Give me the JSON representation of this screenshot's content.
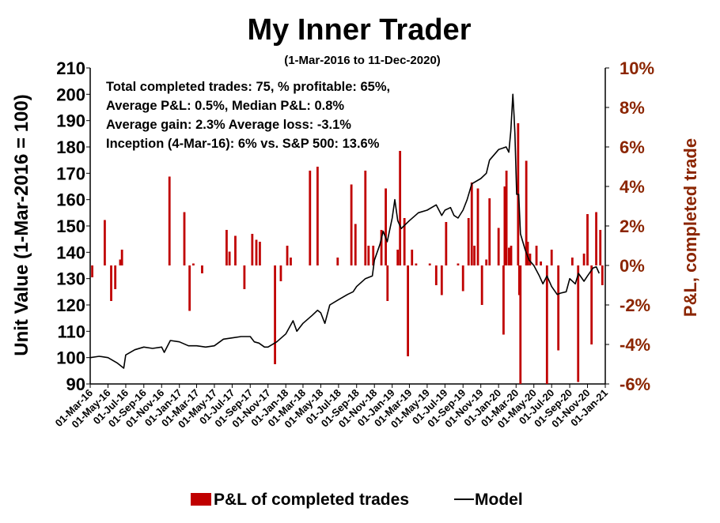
{
  "chart_data": {
    "type": "bar+line",
    "title": "My Inner Trader",
    "subtitle": "(1-Mar-2016 to 11-Dec-2020)",
    "ylabel_left": "Unit Value (1-Mar-2016 = 100)",
    "ylabel_right": "P&L, completed trade",
    "ylim_left": [
      90,
      210
    ],
    "yticks_left": [
      "90",
      "100",
      "110",
      "120",
      "130",
      "140",
      "150",
      "160",
      "170",
      "180",
      "190",
      "200",
      "210"
    ],
    "ylim_right": [
      -6,
      10
    ],
    "yticks_right": [
      "-6%",
      "-4%",
      "-2%",
      "0%",
      "2%",
      "4%",
      "6%",
      "8%",
      "10%"
    ],
    "xlim": [
      "2016-03-01",
      "2021-01-01"
    ],
    "xticks": [
      "01-Mar-16",
      "01-May-16",
      "01-Jul-16",
      "01-Sep-16",
      "01-Nov-16",
      "01-Jan-17",
      "01-Mar-17",
      "01-May-17",
      "01-Jul-17",
      "01-Sep-17",
      "01-Nov-17",
      "01-Jan-18",
      "01-Mar-18",
      "01-May-18",
      "01-Jul-18",
      "01-Sep-18",
      "01-Nov-18",
      "01-Jan-19",
      "01-Mar-19",
      "01-May-19",
      "01-Jul-19",
      "01-Sep-19",
      "01-Nov-19",
      "01-Jan-20",
      "01-Mar-20",
      "01-May-20",
      "01-Jul-20",
      "01-Sep-20",
      "01-Nov-20",
      "01-Jan-21"
    ],
    "annotations": [
      "Total completed trades: 75, % profitable: 65%,",
      "Average P&L: 0.5%, Median P&L: 0.8%",
      "Average gain: 2.3% Average loss: -3.1%",
      "Inception (4-Mar-16): 6% vs. S&P 500: 13.6%"
    ],
    "series": [
      {
        "name": "Model",
        "axis": "left",
        "color": "#000000",
        "points": [
          [
            "2016-03-01",
            100
          ],
          [
            "2016-04-01",
            100.5
          ],
          [
            "2016-05-01",
            100
          ],
          [
            "2016-06-01",
            98
          ],
          [
            "2016-06-24",
            96
          ],
          [
            "2016-07-01",
            101
          ],
          [
            "2016-08-01",
            103
          ],
          [
            "2016-09-01",
            104
          ],
          [
            "2016-10-01",
            103.5
          ],
          [
            "2016-11-01",
            104
          ],
          [
            "2016-11-10",
            102
          ],
          [
            "2016-12-01",
            106.5
          ],
          [
            "2017-01-01",
            106
          ],
          [
            "2017-02-01",
            104.5
          ],
          [
            "2017-03-01",
            104.5
          ],
          [
            "2017-04-01",
            104
          ],
          [
            "2017-05-01",
            104.5
          ],
          [
            "2017-06-01",
            107
          ],
          [
            "2017-07-01",
            107.5
          ],
          [
            "2017-08-01",
            108
          ],
          [
            "2017-09-01",
            108
          ],
          [
            "2017-09-15",
            106
          ],
          [
            "2017-10-01",
            105.5
          ],
          [
            "2017-10-20",
            104
          ],
          [
            "2017-11-01",
            104
          ],
          [
            "2017-12-01",
            106
          ],
          [
            "2018-01-01",
            109
          ],
          [
            "2018-01-26",
            114
          ],
          [
            "2018-02-08",
            110
          ],
          [
            "2018-03-01",
            113
          ],
          [
            "2018-04-01",
            116
          ],
          [
            "2018-04-20",
            118
          ],
          [
            "2018-05-01",
            117
          ],
          [
            "2018-05-15",
            113
          ],
          [
            "2018-06-01",
            120
          ],
          [
            "2018-07-01",
            122
          ],
          [
            "2018-08-01",
            124
          ],
          [
            "2018-08-20",
            125
          ],
          [
            "2018-09-01",
            127
          ],
          [
            "2018-10-01",
            130
          ],
          [
            "2018-10-25",
            131
          ],
          [
            "2018-11-01",
            137
          ],
          [
            "2018-11-20",
            143
          ],
          [
            "2018-12-01",
            148
          ],
          [
            "2018-12-15",
            144
          ],
          [
            "2019-01-01",
            153
          ],
          [
            "2019-01-10",
            160
          ],
          [
            "2019-01-20",
            152
          ],
          [
            "2019-02-01",
            149
          ],
          [
            "2019-03-01",
            152
          ],
          [
            "2019-04-01",
            155
          ],
          [
            "2019-05-01",
            156
          ],
          [
            "2019-06-01",
            158
          ],
          [
            "2019-06-20",
            154
          ],
          [
            "2019-07-01",
            156
          ],
          [
            "2019-07-20",
            157
          ],
          [
            "2019-08-01",
            154
          ],
          [
            "2019-08-15",
            153
          ],
          [
            "2019-09-01",
            156
          ],
          [
            "2019-09-15",
            160
          ],
          [
            "2019-10-01",
            166
          ],
          [
            "2019-11-01",
            168
          ],
          [
            "2019-11-20",
            170
          ],
          [
            "2019-12-01",
            175
          ],
          [
            "2020-01-01",
            179
          ],
          [
            "2020-01-27",
            180
          ],
          [
            "2020-02-05",
            178
          ],
          [
            "2020-02-12",
            186
          ],
          [
            "2020-02-19",
            200
          ],
          [
            "2020-02-23",
            192
          ],
          [
            "2020-02-26",
            185
          ],
          [
            "2020-03-03",
            162
          ],
          [
            "2020-03-10",
            162
          ],
          [
            "2020-03-16",
            147
          ],
          [
            "2020-04-01",
            141
          ],
          [
            "2020-04-15",
            137
          ],
          [
            "2020-05-01",
            135
          ],
          [
            "2020-05-20",
            131
          ],
          [
            "2020-06-01",
            128
          ],
          [
            "2020-06-15",
            131
          ],
          [
            "2020-07-01",
            127
          ],
          [
            "2020-07-20",
            124
          ],
          [
            "2020-08-01",
            124.5
          ],
          [
            "2020-08-20",
            125
          ],
          [
            "2020-09-01",
            130
          ],
          [
            "2020-09-20",
            128
          ],
          [
            "2020-10-01",
            132
          ],
          [
            "2020-10-20",
            129
          ],
          [
            "2020-11-01",
            131
          ],
          [
            "2020-11-20",
            134
          ],
          [
            "2020-12-01",
            134.5
          ],
          [
            "2020-12-11",
            132
          ]
        ]
      },
      {
        "name": "P&L of completed trades",
        "axis": "right",
        "color": "#C00000",
        "type": "bar",
        "points": [
          [
            "2016-03-08",
            -0.6
          ],
          [
            "2016-04-20",
            2.3
          ],
          [
            "2016-05-12",
            -1.8
          ],
          [
            "2016-05-26",
            -1.2
          ],
          [
            "2016-06-12",
            0.3
          ],
          [
            "2016-06-18",
            0.8
          ],
          [
            "2016-11-28",
            4.5
          ],
          [
            "2017-01-18",
            2.7
          ],
          [
            "2017-02-05",
            -2.3
          ],
          [
            "2017-02-18",
            0.1
          ],
          [
            "2017-03-20",
            -0.4
          ],
          [
            "2017-06-12",
            1.8
          ],
          [
            "2017-06-22",
            0.7
          ],
          [
            "2017-07-12",
            1.5
          ],
          [
            "2017-08-12",
            -1.2
          ],
          [
            "2017-09-08",
            1.6
          ],
          [
            "2017-09-22",
            1.3
          ],
          [
            "2017-10-04",
            1.2
          ],
          [
            "2017-11-25",
            -5.0
          ],
          [
            "2017-12-15",
            -0.8
          ],
          [
            "2018-01-06",
            1.0
          ],
          [
            "2018-01-18",
            0.4
          ],
          [
            "2018-03-25",
            4.8
          ],
          [
            "2018-04-20",
            5.0
          ],
          [
            "2018-06-28",
            0.4
          ],
          [
            "2018-08-14",
            4.1
          ],
          [
            "2018-08-28",
            2.1
          ],
          [
            "2018-10-01",
            4.8
          ],
          [
            "2018-10-12",
            1.0
          ],
          [
            "2018-10-28",
            1.0
          ],
          [
            "2018-11-25",
            1.8
          ],
          [
            "2018-12-10",
            3.9
          ],
          [
            "2018-12-16",
            -1.8
          ],
          [
            "2019-01-20",
            0.8
          ],
          [
            "2019-01-28",
            5.8
          ],
          [
            "2019-02-12",
            2.4
          ],
          [
            "2019-02-24",
            -4.6
          ],
          [
            "2019-03-10",
            0.8
          ],
          [
            "2019-03-24",
            0.1
          ],
          [
            "2019-05-10",
            0.1
          ],
          [
            "2019-06-01",
            -1.0
          ],
          [
            "2019-06-20",
            -1.5
          ],
          [
            "2019-07-05",
            2.2
          ],
          [
            "2019-08-15",
            0.1
          ],
          [
            "2019-09-01",
            -1.3
          ],
          [
            "2019-09-20",
            2.4
          ],
          [
            "2019-10-01",
            4.2
          ],
          [
            "2019-10-10",
            1.0
          ],
          [
            "2019-10-22",
            3.9
          ],
          [
            "2019-11-05",
            -2.0
          ],
          [
            "2019-11-20",
            0.3
          ],
          [
            "2019-12-01",
            3.4
          ],
          [
            "2020-01-01",
            1.9
          ],
          [
            "2020-01-18",
            -3.5
          ],
          [
            "2020-01-22",
            4.0
          ],
          [
            "2020-01-28",
            4.8
          ],
          [
            "2020-02-06",
            0.9
          ],
          [
            "2020-02-13",
            1.0
          ],
          [
            "2020-03-08",
            7.2
          ],
          [
            "2020-03-12",
            -1.5
          ],
          [
            "2020-03-16",
            -6.0
          ],
          [
            "2020-04-05",
            5.3
          ],
          [
            "2020-04-10",
            1.2
          ],
          [
            "2020-04-18",
            0.6
          ],
          [
            "2020-05-10",
            1.0
          ],
          [
            "2020-05-25",
            0.2
          ],
          [
            "2020-06-15",
            -6.0
          ],
          [
            "2020-07-01",
            0.8
          ],
          [
            "2020-07-24",
            -4.3
          ],
          [
            "2020-09-10",
            0.4
          ],
          [
            "2020-09-30",
            -5.9
          ],
          [
            "2020-10-20",
            0.6
          ],
          [
            "2020-11-01",
            2.6
          ],
          [
            "2020-11-15",
            -4.0
          ],
          [
            "2020-12-01",
            2.7
          ],
          [
            "2020-12-15",
            1.8
          ],
          [
            "2020-12-22",
            -1.0
          ]
        ]
      }
    ],
    "legend": {
      "placement": "bottom-center"
    },
    "grid": false
  }
}
